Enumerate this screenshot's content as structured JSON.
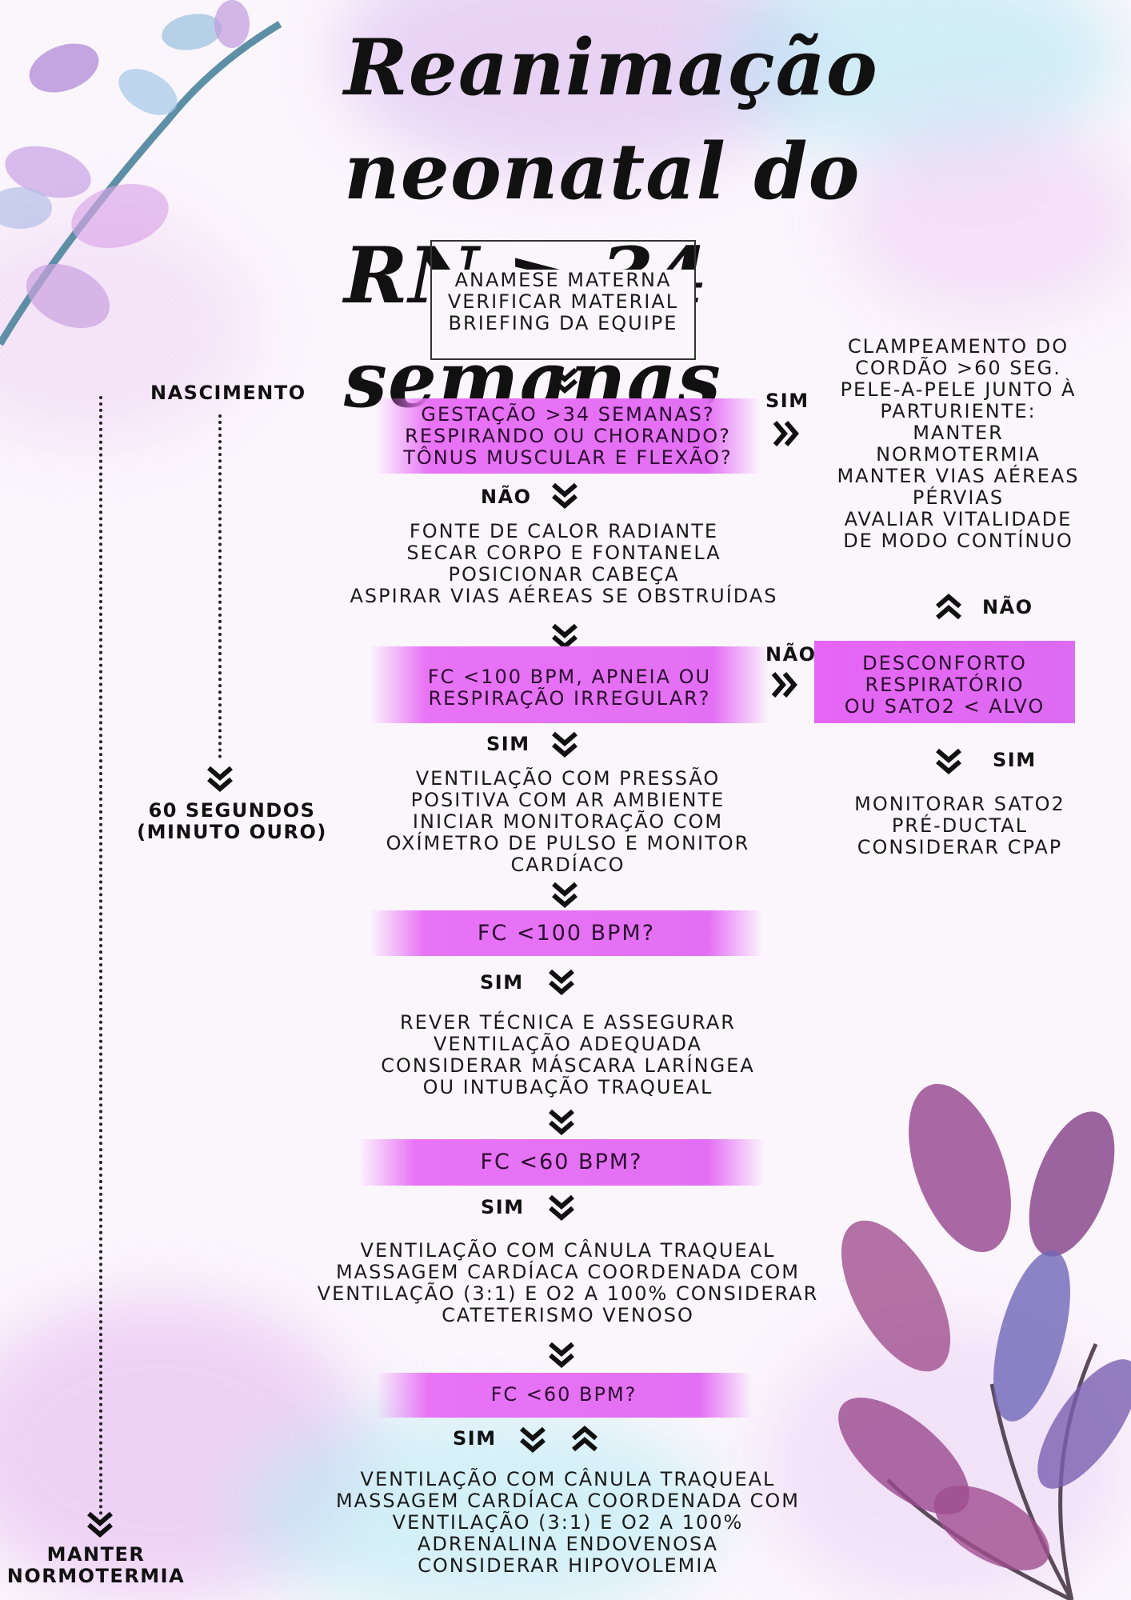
{
  "colors": {
    "highlight": "#e36ff4",
    "text": "#1a1a1a",
    "background": "#fbf6fc"
  },
  "title": {
    "line1": "Reanimação neonatal do",
    "line2": "RN ≥ 34 semanas"
  },
  "prep_box": [
    "ANAMESE MATERNA",
    "VERIFICAR MATERIAL",
    "BRIEFING DA EQUIPE"
  ],
  "timeline": {
    "birth": "NASCIMENTO",
    "golden_1": "60 SEGUNDOS",
    "golden_2": "(MINUTO OURO)",
    "keep_1": "MANTER",
    "keep_2": "NORMOTERMIA"
  },
  "q1": [
    "GESTAÇÃO >34 SEMANAS?",
    "RESPIRANDO OU CHORANDO?",
    "TÔNUS MUSCULAR E FLEXÃO?"
  ],
  "yes": "SIM",
  "no": "NÃO",
  "right_yes_box": [
    "CLAMPEAMENTO DO",
    "CORDÃO >60 SEG.",
    "PELE-A-PELE JUNTO À",
    "PARTURIENTE:",
    "MANTER",
    "NORMOTERMIA",
    "MANTER VIAS AÉREAS",
    "PÉRVIAS",
    "AVALIAR VITALIDADE",
    "DE MODO CONTÍNUO"
  ],
  "step2": [
    "FONTE DE CALOR RADIANTE",
    "SECAR CORPO E FONTANELA",
    "POSICIONAR CABEÇA",
    "ASPIRAR VIAS AÉREAS SE OBSTRUÍDAS"
  ],
  "q2": [
    "FC <100 BPM, APNEIA OU",
    "RESPIRAÇÃO IRREGULAR?"
  ],
  "distress": [
    "DESCONFORTO",
    "RESPIRATÓRIO",
    "OU SATO2 < ALVO"
  ],
  "monitor": [
    "MONITORAR SATO2",
    "PRÉ-DUCTAL",
    "CONSIDERAR CPAP"
  ],
  "step3": [
    "VENTILAÇÃO COM PRESSÃO",
    "POSITIVA COM AR AMBIENTE",
    "INICIAR MONITORAÇÃO COM",
    "OXÍMETRO DE PULSO E MONITOR",
    "CARDÍACO"
  ],
  "q3": "FC <100 BPM?",
  "step4": [
    "REVER TÉCNICA E ASSEGURAR",
    "VENTILAÇÃO ADEQUADA",
    "CONSIDERAR MÁSCARA LARÍNGEA",
    "OU INTUBAÇÃO TRAQUEAL"
  ],
  "q4": "FC <60 BPM?",
  "step5": [
    "VENTILAÇÃO COM CÂNULA TRAQUEAL",
    "MASSAGEM CARDÍACA COORDENADA COM",
    "VENTILAÇÃO (3:1) E O2 A 100% CONSIDERAR",
    "CATETERISMO VENOSO"
  ],
  "q5": "FC <60 BPM?",
  "step6": [
    "VENTILAÇÃO COM CÂNULA TRAQUEAL",
    "MASSAGEM CARDÍACA COORDENADA COM",
    "VENTILAÇÃO (3:1) E O2 A 100%",
    "ADRENALINA ENDOVENOSA",
    "CONSIDERAR HIPOVOLEMIA"
  ]
}
